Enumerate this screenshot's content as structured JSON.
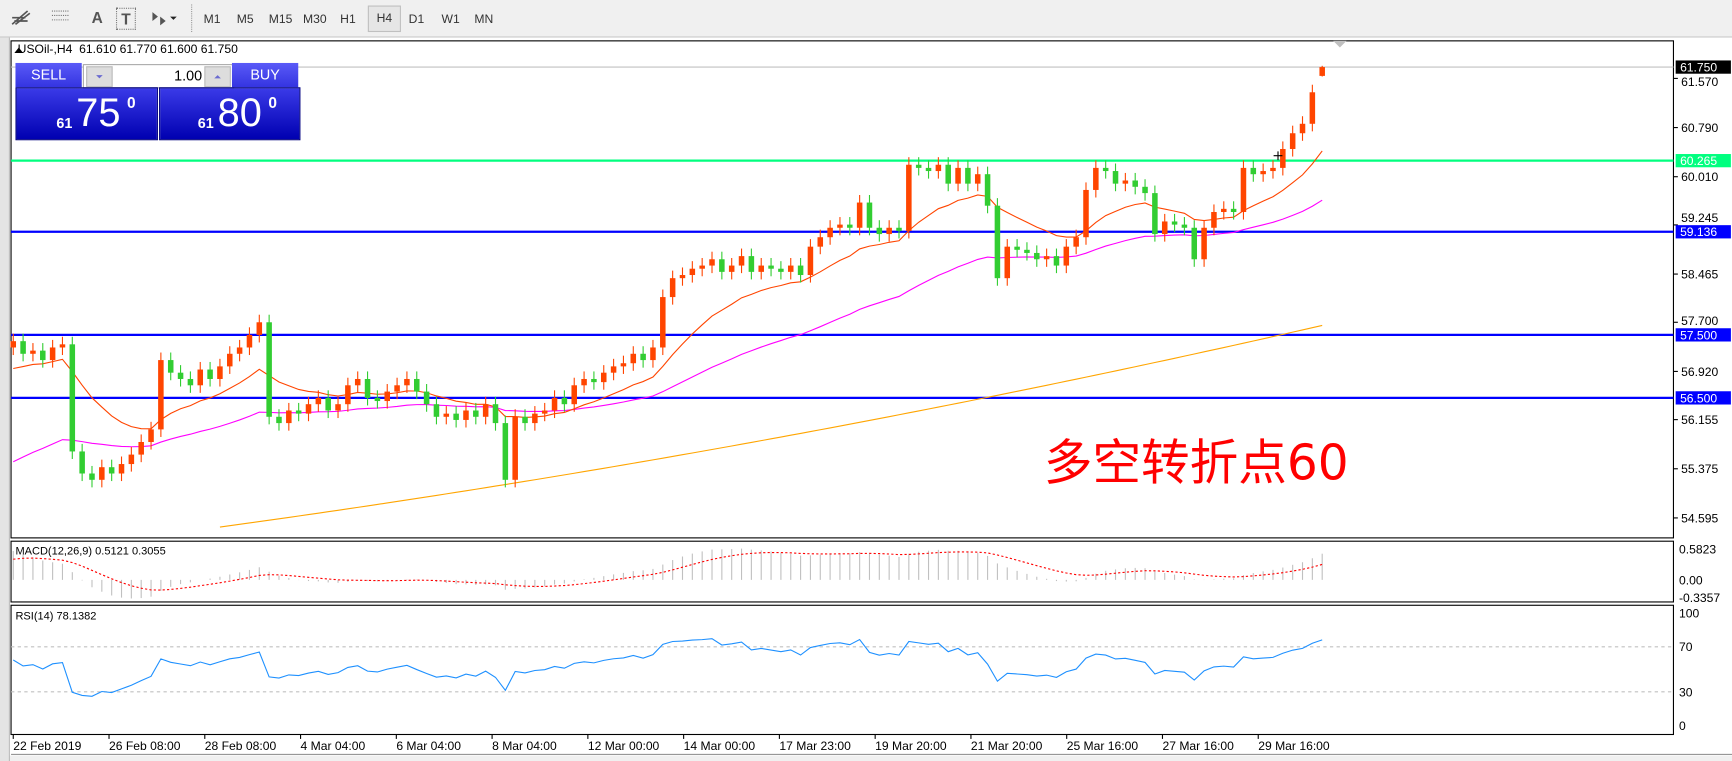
{
  "toolbar": {
    "tools": [
      {
        "icon": "fibonacci-expansion-icon"
      },
      {
        "icon": "fibonacci-fan-icon"
      },
      {
        "icon": "text-icon",
        "label": "A"
      },
      {
        "icon": "text-label-icon",
        "label": "T"
      },
      {
        "icon": "arrows-dropdown-icon"
      }
    ],
    "timeframes": [
      "M1",
      "M5",
      "M15",
      "M30",
      "H1",
      "H4",
      "D1",
      "W1",
      "MN"
    ],
    "selected_timeframe": "H4"
  },
  "chart": {
    "title": "USOil-,H4  61.610 61.770 61.600 61.750",
    "symbol": "USOil-",
    "timeframe": "H4",
    "annotation": "多空转折点60",
    "annotation_color": "#ff0000"
  },
  "trade_panel": {
    "sell_label": "SELL",
    "buy_label": "BUY",
    "lot": "1.00",
    "sell_big": "61",
    "sell_pips": "75",
    "sell_sup": "0",
    "buy_big": "61",
    "buy_pips": "80",
    "buy_sup": "0"
  },
  "price_axis": {
    "ticks": [
      "61.570",
      "60.790",
      "60.010",
      "59.245",
      "58.465",
      "57.700",
      "56.920",
      "56.155",
      "55.375",
      "54.595"
    ],
    "current_price": "61.750"
  },
  "levels": [
    {
      "price": 60.265,
      "label": "60.265",
      "color": "#00ff7f"
    },
    {
      "price": 59.136,
      "label": "59.136",
      "color": "#0000ff"
    },
    {
      "price": 57.5,
      "label": "57.500",
      "color": "#0000ff"
    },
    {
      "price": 56.5,
      "label": "56.500",
      "color": "#0000ff"
    }
  ],
  "macd": {
    "label": "MACD(12,26,9) 0.5121 0.3055",
    "ticks": [
      "0.5823",
      "0.00",
      "-0.3357"
    ]
  },
  "rsi": {
    "label": "RSI(14) 78.1382",
    "ticks": [
      "100",
      "70",
      "30",
      "0"
    ],
    "levels": [
      70,
      30
    ],
    "color": "#1e90ff"
  },
  "time_axis": [
    "22 Feb 2019",
    "26 Feb 08:00",
    "28 Feb 08:00",
    "4 Mar 04:00",
    "6 Mar 04:00",
    "8 Mar 04:00",
    "12 Mar 00:00",
    "14 Mar 00:00",
    "17 Mar 23:00",
    "19 Mar 20:00",
    "21 Mar 20:00",
    "25 Mar 16:00",
    "27 Mar 16:00",
    "29 Mar 16:00"
  ],
  "colors": {
    "bull": "#ff4500",
    "bear": "#32cd32",
    "ma_fast": "#ff4500",
    "ma_mid": "#ff00ff",
    "ma_slow": "#ffa500",
    "macd_signal": "#ff0000"
  },
  "chart_data": {
    "type": "candlestick",
    "first_open": 57.3,
    "last_bar": {
      "open": 61.61,
      "high": 61.77,
      "low": 61.6,
      "close": 61.75
    },
    "closes": [
      57.4,
      57.2,
      57.25,
      57.1,
      57.3,
      57.35,
      55.65,
      55.3,
      55.2,
      55.4,
      55.3,
      55.45,
      55.6,
      55.8,
      56.0,
      57.1,
      56.9,
      56.8,
      56.7,
      56.95,
      56.8,
      57.0,
      57.2,
      57.3,
      57.5,
      57.7,
      56.2,
      56.1,
      56.3,
      56.25,
      56.4,
      56.5,
      56.3,
      56.4,
      56.7,
      56.8,
      56.5,
      56.45,
      56.6,
      56.7,
      56.8,
      56.6,
      56.4,
      56.2,
      56.25,
      56.15,
      56.3,
      56.2,
      56.4,
      56.1,
      55.2,
      56.2,
      56.1,
      56.25,
      56.3,
      56.5,
      56.4,
      56.7,
      56.8,
      56.75,
      56.9,
      57.0,
      57.05,
      57.2,
      57.1,
      57.3,
      58.1,
      58.4,
      58.45,
      58.55,
      58.6,
      58.7,
      58.5,
      58.6,
      58.75,
      58.5,
      58.6,
      58.55,
      58.5,
      58.6,
      58.45,
      58.9,
      59.05,
      59.2,
      59.25,
      59.2,
      59.6,
      59.2,
      59.1,
      59.2,
      59.15,
      60.2,
      60.15,
      60.1,
      60.2,
      59.9,
      60.15,
      59.9,
      60.05,
      59.55,
      58.4,
      58.9,
      58.85,
      58.8,
      58.7,
      58.75,
      58.6,
      58.9,
      59.05,
      59.8,
      60.15,
      60.1,
      59.9,
      59.95,
      59.85,
      59.75,
      59.1,
      59.3,
      59.25,
      59.2,
      58.7,
      59.2,
      59.45,
      59.5,
      59.45,
      60.15,
      60.05,
      60.1,
      60.15,
      60.45,
      60.7,
      60.85,
      61.35,
      61.75
    ],
    "ylim": [
      54.3,
      62.2
    ]
  }
}
